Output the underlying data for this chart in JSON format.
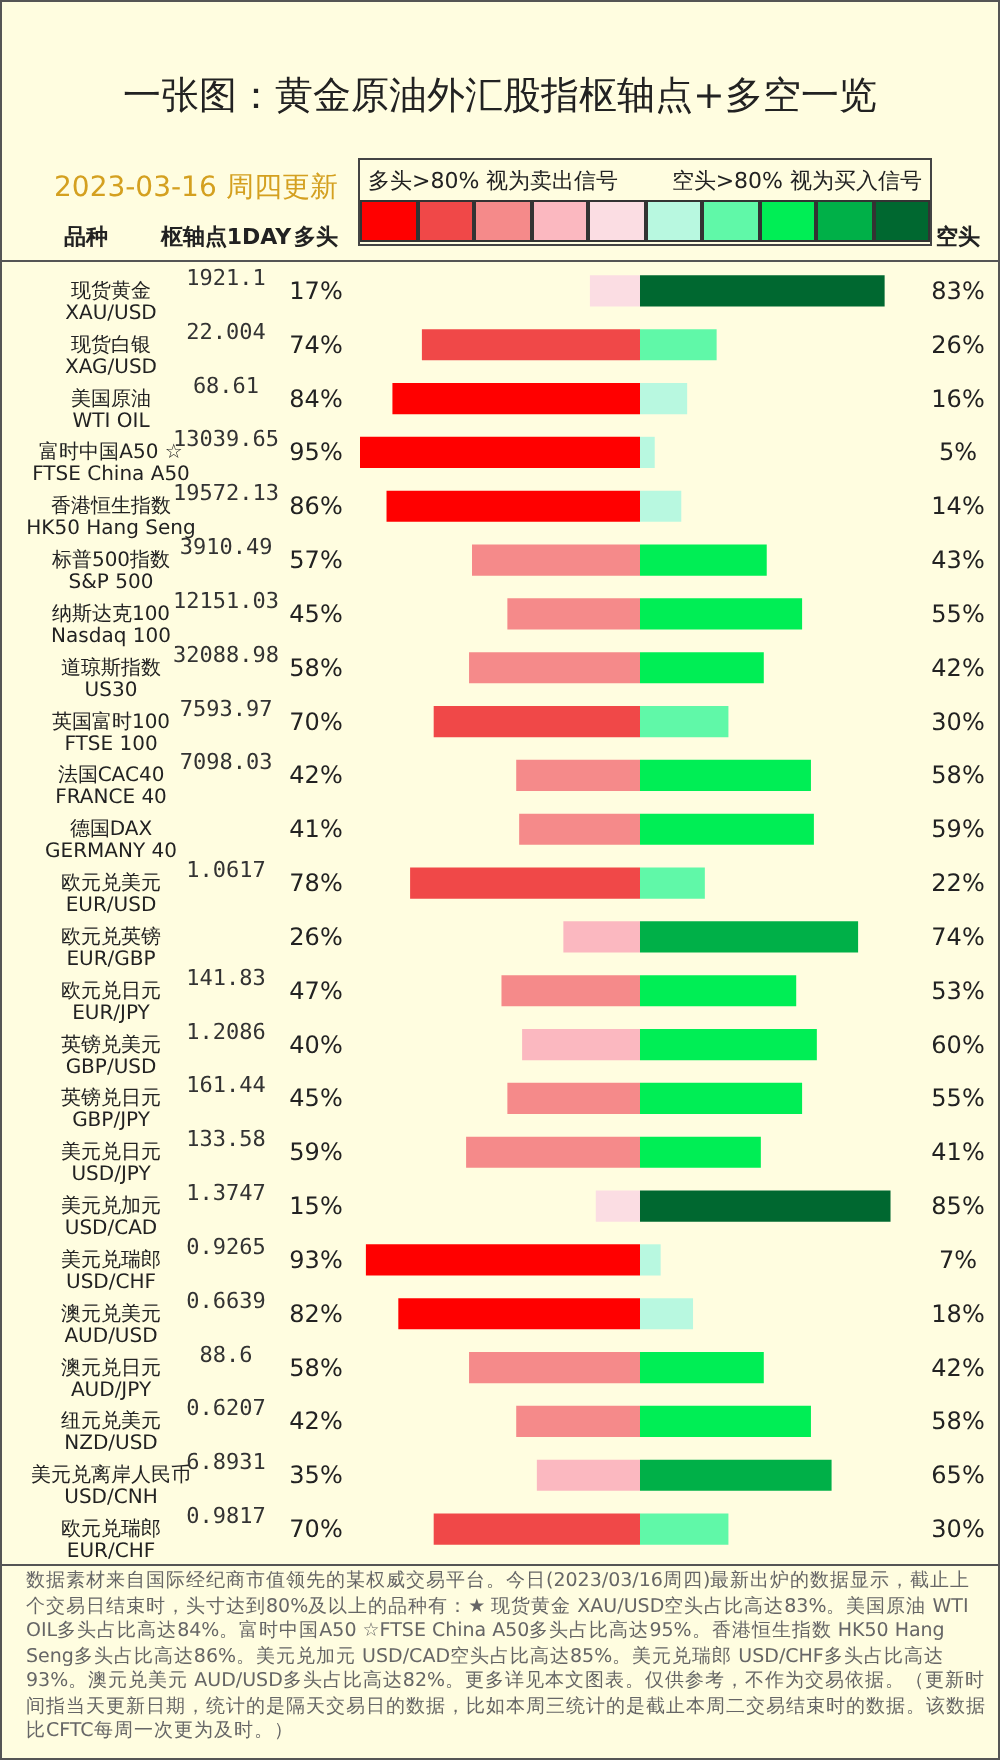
{
  "chart_data": [
    {
      "type": "other",
      "title": "枢轴点1DAY",
      "annotations": [
        "1921.1",
        "22.004",
        "68.61",
        "13039.65",
        "19572.13",
        "3910.49",
        "12151.03",
        "32088.98",
        "7593.97",
        "7098.03",
        null,
        "1.0617",
        null,
        "141.83",
        "1.2086",
        "161.44",
        "133.58",
        "1.3747",
        "0.9265",
        "0.6639",
        "88.6",
        "0.6207",
        "6.8931",
        "0.9817"
      ]
    },
    {
      "type": "bar",
      "orientation": "horizontal",
      "title": "一张图：黄金原油外汇股指枢轴点+多空一览",
      "subtitle": "2023-03-16 周四更新",
      "ylabel": "品种",
      "tick_labels": "y",
      "categories": [
        "现货黄金\nXAU/USD",
        "现货白银\nXAG/USD",
        "美国原油\nWTI OIL",
        "富时中国A50 ☆\nFTSE China A50",
        "香港恒生指数\nHK50 Hang Seng",
        "标普500指数\nS&P 500",
        "纳斯达克100\nNasdaq 100",
        "道琼斯指数\nUS30",
        "英国富时100\nFTSE 100",
        "法国CAC40\nFRANCE 40",
        "德国DAX\nGERMANY 40",
        "欧元兑美元\nEUR/USD",
        "欧元兑英镑\nEUR/GBP",
        "欧元兑日元\nEUR/JPY",
        "英镑兑美元\nGBP/USD",
        "英镑兑日元\nGBP/JPY",
        "美元兑日元\nUSD/JPY",
        "美元兑加元\nUSD/CAD",
        "美元兑瑞郎\nUSD/CHF",
        "澳元兑美元\nAUD/USD",
        "澳元兑日元\nAUD/JPY",
        "纽元兑美元\nNZD/USD",
        "美元兑离岸人民币\nUSD/CNH",
        "欧元兑瑞郎\nEUR/CHF"
      ],
      "series": [
        {
          "name": "多头",
          "values": [
            17,
            74,
            84,
            95,
            86,
            57,
            45,
            58,
            70,
            42,
            41,
            78,
            26,
            47,
            40,
            45,
            59,
            15,
            93,
            82,
            58,
            42,
            35,
            70
          ],
          "value_labels": [
            "17%",
            "74%",
            "84%",
            "95%",
            "86%",
            "57%",
            "45%",
            "58%",
            "70%",
            "42%",
            "41%",
            "78%",
            "26%",
            "47%",
            "40%",
            "45%",
            "59%",
            "15%",
            "93%",
            "82%",
            "58%",
            "42%",
            "35%",
            "70%"
          ],
          "colors": [
            "#fbdde3",
            "#f04848",
            "#ff0000",
            "#ff0000",
            "#ff0000",
            "#f58a8a",
            "#f58a8a",
            "#f58a8a",
            "#f04848",
            "#f58a8a",
            "#f58a8a",
            "#f04848",
            "#fbb8c0",
            "#f58a8a",
            "#fbb8c0",
            "#f58a8a",
            "#f58a8a",
            "#fbdde3",
            "#ff0000",
            "#ff0000",
            "#f58a8a",
            "#f58a8a",
            "#fbb8c0",
            "#f04848"
          ]
        }
      ],
      "annotations": [
        "多头>80%  视为卖出信号",
        "空头>80%  视为买入信号",
        "数据素材来自国际经纪商市值领先的某权威交易平台。今日(2023/03/16周四)最新出炉的数据显示，截止上个交易日结束时，头寸达到80%及以上的品种有：★ 现货黄金 XAU/USD空头占比高达83%。美国原油 WTI OIL多头占比高达84%。富时中国A50 ☆FTSE China A50多头占比高达95%。香港恒生指数 HK50 Hang Seng多头占比高达86%。美元兑加元 USD/CAD空头占比高达85%。美元兑瑞郎 USD/CHF多头占比高达93%。澳元兑美元 AUD/USD多头占比高达82%。更多详见本文图表。仅供参考，不作为交易依据。（更新时间指当天更新日期，统计的是隔天交易日的数据，比如本周三统计的是截止本周二交易结束时的数据。该数据比CFTC每周一次更为及时。）"
      ]
    },
    {
      "type": "bar",
      "orientation": "horizontal",
      "tick_labels": false,
      "categories": [
        null,
        null,
        null,
        null,
        null,
        null,
        null,
        null,
        null,
        null,
        null,
        null,
        null,
        null,
        null,
        null,
        null,
        null,
        null,
        null,
        null,
        null,
        null,
        null
      ],
      "series": [
        {
          "name": "空头",
          "values": [
            83,
            26,
            16,
            5,
            14,
            43,
            55,
            42,
            30,
            58,
            59,
            22,
            74,
            53,
            60,
            55,
            41,
            85,
            7,
            18,
            42,
            58,
            65,
            30
          ],
          "value_labels": [
            "83%",
            "26%",
            "16%",
            "5%",
            "14%",
            "43%",
            "55%",
            "42%",
            "30%",
            "58%",
            "59%",
            "22%",
            "74%",
            "53%",
            "60%",
            "55%",
            "41%",
            "85%",
            "7%",
            "18%",
            "42%",
            "58%",
            "65%",
            "30%"
          ],
          "colors": [
            "#006830",
            "#60f8a8",
            "#b8f8e0",
            "#b8f8e0",
            "#b8f8e0",
            "#00ee55",
            "#00ee55",
            "#00ee55",
            "#60f8a8",
            "#00ee55",
            "#00ee55",
            "#60f8a8",
            "#00b048",
            "#00ee55",
            "#00ee55",
            "#00ee55",
            "#00ee55",
            "#006830",
            "#b8f8e0",
            "#b8f8e0",
            "#00ee55",
            "#00ee55",
            "#00b048",
            "#60f8a8"
          ]
        }
      ]
    }
  ]
}
